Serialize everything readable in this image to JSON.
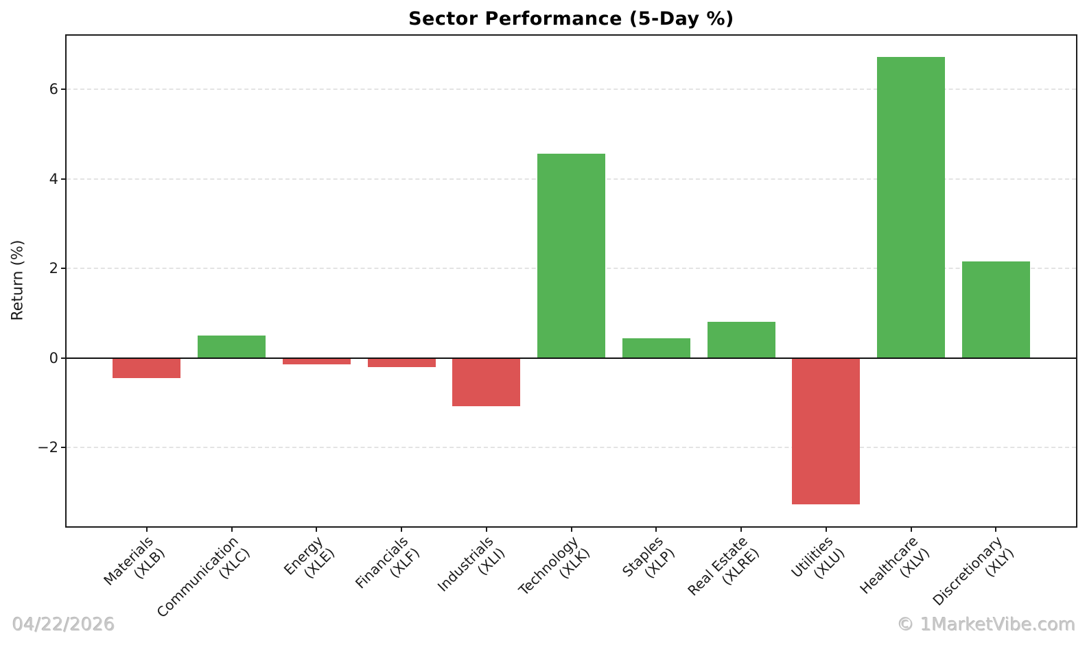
{
  "chart_data": {
    "type": "bar",
    "title": "Sector Performance (5-Day %)",
    "xlabel": "",
    "ylabel": "Return (%)",
    "categories": [
      {
        "name": "Materials",
        "ticker": "(XLB)"
      },
      {
        "name": "Communication",
        "ticker": "(XLC)"
      },
      {
        "name": "Energy",
        "ticker": "(XLE)"
      },
      {
        "name": "Financials",
        "ticker": "(XLF)"
      },
      {
        "name": "Industrials",
        "ticker": "(XLI)"
      },
      {
        "name": "Technology",
        "ticker": "(XLK)"
      },
      {
        "name": "Staples",
        "ticker": "(XLP)"
      },
      {
        "name": "Real Estate",
        "ticker": "(XLRE)"
      },
      {
        "name": "Utilities",
        "ticker": "(XLU)"
      },
      {
        "name": "Healthcare",
        "ticker": "(XLV)"
      },
      {
        "name": "Discretionary",
        "ticker": "(XLY)"
      }
    ],
    "values": [
      -0.45,
      0.5,
      -0.15,
      -0.2,
      -1.08,
      4.56,
      0.44,
      0.81,
      -3.27,
      6.72,
      2.16
    ],
    "yticks": [
      -2,
      0,
      2,
      4,
      6
    ],
    "ylim": [
      -3.76,
      7.2
    ],
    "grid": "horizontal-dashed",
    "zero_line": true,
    "legend": "none",
    "colors": {
      "positive": "#55b355",
      "negative": "#dc5454",
      "gridline": "#e3e3e3",
      "axis": "#1c1c1c",
      "footer_text": "#c9c9c9"
    }
  },
  "footer": {
    "date": "04/22/2026",
    "watermark": "© 1MarketVibe.com"
  }
}
